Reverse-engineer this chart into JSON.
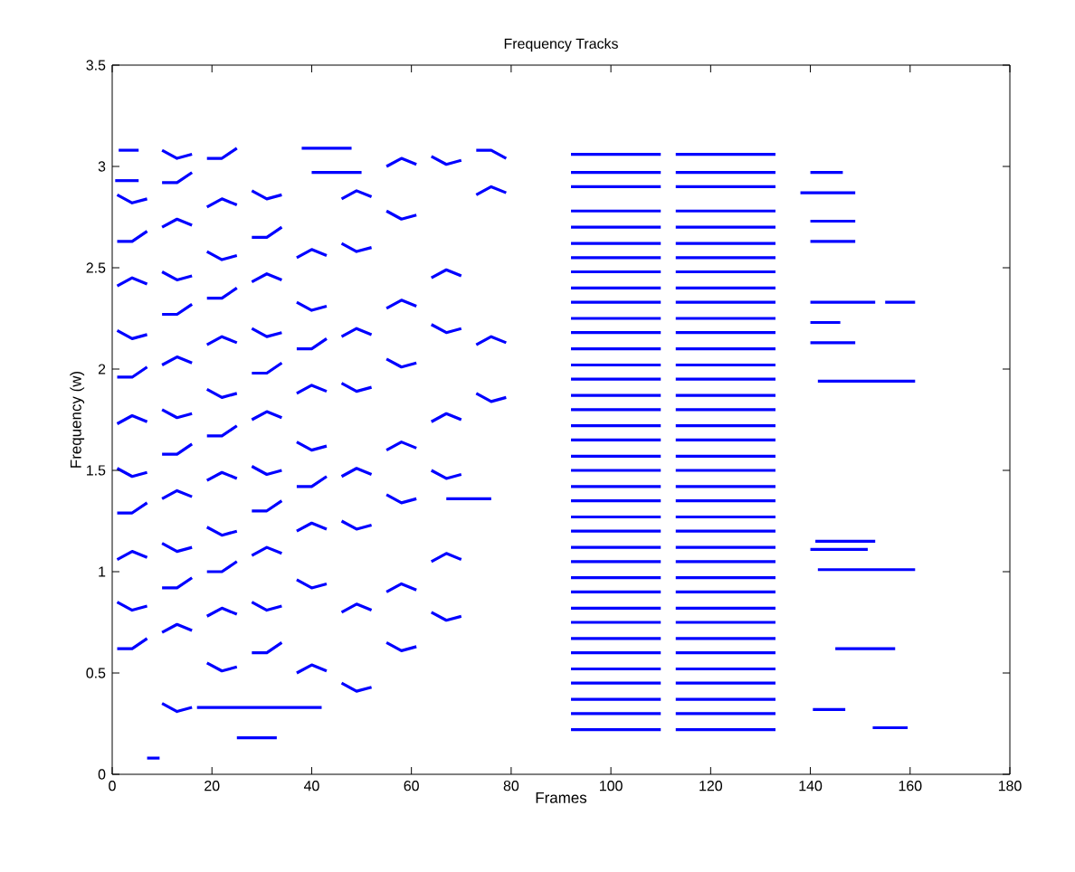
{
  "chart_data": {
    "type": "line",
    "title": "Frequency Tracks",
    "xlabel": "Frames",
    "ylabel": "Frequency (w)",
    "xlim": [
      0,
      180
    ],
    "ylim": [
      0,
      3.5
    ],
    "xticks": [
      0,
      20,
      40,
      60,
      80,
      100,
      120,
      140,
      160,
      180
    ],
    "yticks": [
      0,
      0.5,
      1,
      1.5,
      2,
      2.5,
      3,
      3.5
    ],
    "series": [
      {
        "color": "#0000ff",
        "x": [
          1.3,
          5.3
        ],
        "values": [
          3.08,
          3.08
        ]
      },
      {
        "color": "#0000ff",
        "x": [
          0.6,
          5.3
        ],
        "values": [
          2.93,
          2.93
        ]
      },
      {
        "color": "#0000ff",
        "x": [
          1,
          4,
          7
        ],
        "values": [
          2.86,
          2.82,
          2.84
        ]
      },
      {
        "color": "#0000ff",
        "x": [
          1,
          4,
          7
        ],
        "values": [
          2.63,
          2.63,
          2.68
        ]
      },
      {
        "color": "#0000ff",
        "x": [
          1,
          4,
          7
        ],
        "values": [
          2.41,
          2.45,
          2.42
        ]
      },
      {
        "color": "#0000ff",
        "x": [
          1,
          4,
          7
        ],
        "values": [
          2.19,
          2.15,
          2.17
        ]
      },
      {
        "color": "#0000ff",
        "x": [
          1,
          4,
          7
        ],
        "values": [
          1.96,
          1.96,
          2.01
        ]
      },
      {
        "color": "#0000ff",
        "x": [
          1,
          4,
          7
        ],
        "values": [
          1.73,
          1.77,
          1.74
        ]
      },
      {
        "color": "#0000ff",
        "x": [
          1,
          4,
          7
        ],
        "values": [
          1.51,
          1.47,
          1.49
        ]
      },
      {
        "color": "#0000ff",
        "x": [
          1,
          4,
          7
        ],
        "values": [
          1.29,
          1.29,
          1.34
        ]
      },
      {
        "color": "#0000ff",
        "x": [
          1,
          4,
          7
        ],
        "values": [
          1.06,
          1.1,
          1.07
        ]
      },
      {
        "color": "#0000ff",
        "x": [
          1,
          4,
          7
        ],
        "values": [
          0.85,
          0.81,
          0.83
        ]
      },
      {
        "color": "#0000ff",
        "x": [
          1,
          4,
          7
        ],
        "values": [
          0.62,
          0.62,
          0.67
        ]
      },
      {
        "color": "#0000ff",
        "x": [
          7,
          9.5
        ],
        "values": [
          0.08,
          0.08
        ]
      },
      {
        "color": "#0000ff",
        "x": [
          10,
          13,
          16
        ],
        "values": [
          3.08,
          3.04,
          3.06
        ]
      },
      {
        "color": "#0000ff",
        "x": [
          10,
          13,
          16
        ],
        "values": [
          2.92,
          2.92,
          2.97
        ]
      },
      {
        "color": "#0000ff",
        "x": [
          10,
          13,
          16
        ],
        "values": [
          2.7,
          2.74,
          2.71
        ]
      },
      {
        "color": "#0000ff",
        "x": [
          10,
          13,
          16
        ],
        "values": [
          2.48,
          2.44,
          2.46
        ]
      },
      {
        "color": "#0000ff",
        "x": [
          10,
          13,
          16
        ],
        "values": [
          2.27,
          2.27,
          2.32
        ]
      },
      {
        "color": "#0000ff",
        "x": [
          10,
          13,
          16
        ],
        "values": [
          2.02,
          2.06,
          2.03
        ]
      },
      {
        "color": "#0000ff",
        "x": [
          10,
          13,
          16
        ],
        "values": [
          1.8,
          1.76,
          1.78
        ]
      },
      {
        "color": "#0000ff",
        "x": [
          10,
          13,
          16
        ],
        "values": [
          1.58,
          1.58,
          1.63
        ]
      },
      {
        "color": "#0000ff",
        "x": [
          10,
          13,
          16
        ],
        "values": [
          1.36,
          1.4,
          1.37
        ]
      },
      {
        "color": "#0000ff",
        "x": [
          10,
          13,
          16
        ],
        "values": [
          1.14,
          1.1,
          1.12
        ]
      },
      {
        "color": "#0000ff",
        "x": [
          10,
          13,
          16
        ],
        "values": [
          0.92,
          0.92,
          0.97
        ]
      },
      {
        "color": "#0000ff",
        "x": [
          10,
          13,
          16
        ],
        "values": [
          0.7,
          0.74,
          0.71
        ]
      },
      {
        "color": "#0000ff",
        "x": [
          10,
          13,
          16
        ],
        "values": [
          0.35,
          0.31,
          0.33
        ]
      },
      {
        "color": "#0000ff",
        "x": [
          19,
          22,
          25
        ],
        "values": [
          3.04,
          3.04,
          3.09
        ]
      },
      {
        "color": "#0000ff",
        "x": [
          19,
          22,
          25
        ],
        "values": [
          2.8,
          2.84,
          2.81
        ]
      },
      {
        "color": "#0000ff",
        "x": [
          19,
          22,
          25
        ],
        "values": [
          2.58,
          2.54,
          2.56
        ]
      },
      {
        "color": "#0000ff",
        "x": [
          19,
          22,
          25
        ],
        "values": [
          2.35,
          2.35,
          2.4
        ]
      },
      {
        "color": "#0000ff",
        "x": [
          19,
          22,
          25
        ],
        "values": [
          2.12,
          2.16,
          2.13
        ]
      },
      {
        "color": "#0000ff",
        "x": [
          19,
          22,
          25
        ],
        "values": [
          1.9,
          1.86,
          1.88
        ]
      },
      {
        "color": "#0000ff",
        "x": [
          19,
          22,
          25
        ],
        "values": [
          1.67,
          1.67,
          1.72
        ]
      },
      {
        "color": "#0000ff",
        "x": [
          19,
          22,
          25
        ],
        "values": [
          1.45,
          1.49,
          1.46
        ]
      },
      {
        "color": "#0000ff",
        "x": [
          19,
          22,
          25
        ],
        "values": [
          1.22,
          1.18,
          1.2
        ]
      },
      {
        "color": "#0000ff",
        "x": [
          19,
          22,
          25
        ],
        "values": [
          1.0,
          1.0,
          1.05
        ]
      },
      {
        "color": "#0000ff",
        "x": [
          19,
          22,
          25
        ],
        "values": [
          0.78,
          0.82,
          0.79
        ]
      },
      {
        "color": "#0000ff",
        "x": [
          19,
          22,
          25
        ],
        "values": [
          0.55,
          0.51,
          0.53
        ]
      },
      {
        "color": "#0000ff",
        "x": [
          17,
          30,
          42
        ],
        "values": [
          0.33,
          0.33,
          0.33
        ]
      },
      {
        "color": "#0000ff",
        "x": [
          28,
          31,
          34
        ],
        "values": [
          2.88,
          2.84,
          2.86
        ]
      },
      {
        "color": "#0000ff",
        "x": [
          28,
          31,
          34
        ],
        "values": [
          2.65,
          2.65,
          2.7
        ]
      },
      {
        "color": "#0000ff",
        "x": [
          28,
          31,
          34
        ],
        "values": [
          2.43,
          2.47,
          2.44
        ]
      },
      {
        "color": "#0000ff",
        "x": [
          28,
          31,
          34
        ],
        "values": [
          2.2,
          2.16,
          2.18
        ]
      },
      {
        "color": "#0000ff",
        "x": [
          28,
          31,
          34
        ],
        "values": [
          1.98,
          1.98,
          2.03
        ]
      },
      {
        "color": "#0000ff",
        "x": [
          28,
          31,
          34
        ],
        "values": [
          1.75,
          1.79,
          1.76
        ]
      },
      {
        "color": "#0000ff",
        "x": [
          28,
          31,
          34
        ],
        "values": [
          1.52,
          1.48,
          1.5
        ]
      },
      {
        "color": "#0000ff",
        "x": [
          28,
          31,
          34
        ],
        "values": [
          1.3,
          1.3,
          1.35
        ]
      },
      {
        "color": "#0000ff",
        "x": [
          28,
          31,
          34
        ],
        "values": [
          1.08,
          1.12,
          1.09
        ]
      },
      {
        "color": "#0000ff",
        "x": [
          28,
          31,
          34
        ],
        "values": [
          0.85,
          0.81,
          0.83
        ]
      },
      {
        "color": "#0000ff",
        "x": [
          28,
          31,
          34
        ],
        "values": [
          0.6,
          0.6,
          0.65
        ]
      },
      {
        "color": "#0000ff",
        "x": [
          25,
          29,
          33
        ],
        "values": [
          0.18,
          0.18,
          0.18
        ]
      },
      {
        "color": "#0000ff",
        "x": [
          38,
          43,
          48
        ],
        "values": [
          3.09,
          3.09,
          3.09
        ]
      },
      {
        "color": "#0000ff",
        "x": [
          40,
          45,
          50
        ],
        "values": [
          2.97,
          2.97,
          2.97
        ]
      },
      {
        "color": "#0000ff",
        "x": [
          37,
          40,
          43
        ],
        "values": [
          2.55,
          2.59,
          2.56
        ]
      },
      {
        "color": "#0000ff",
        "x": [
          37,
          40,
          43
        ],
        "values": [
          2.33,
          2.29,
          2.31
        ]
      },
      {
        "color": "#0000ff",
        "x": [
          37,
          40,
          43
        ],
        "values": [
          2.1,
          2.1,
          2.15
        ]
      },
      {
        "color": "#0000ff",
        "x": [
          37,
          40,
          43
        ],
        "values": [
          1.88,
          1.92,
          1.89
        ]
      },
      {
        "color": "#0000ff",
        "x": [
          37,
          40,
          43
        ],
        "values": [
          1.64,
          1.6,
          1.62
        ]
      },
      {
        "color": "#0000ff",
        "x": [
          37,
          40,
          43
        ],
        "values": [
          1.42,
          1.42,
          1.47
        ]
      },
      {
        "color": "#0000ff",
        "x": [
          37,
          40,
          43
        ],
        "values": [
          1.2,
          1.24,
          1.21
        ]
      },
      {
        "color": "#0000ff",
        "x": [
          37,
          40,
          43
        ],
        "values": [
          0.96,
          0.92,
          0.94
        ]
      },
      {
        "color": "#0000ff",
        "x": [
          37,
          40,
          43
        ],
        "values": [
          0.5,
          0.54,
          0.51
        ]
      },
      {
        "color": "#0000ff",
        "x": [
          46,
          49,
          52
        ],
        "values": [
          2.84,
          2.88,
          2.85
        ]
      },
      {
        "color": "#0000ff",
        "x": [
          46,
          49,
          52
        ],
        "values": [
          2.62,
          2.58,
          2.6
        ]
      },
      {
        "color": "#0000ff",
        "x": [
          46,
          49,
          52
        ],
        "values": [
          2.16,
          2.2,
          2.17
        ]
      },
      {
        "color": "#0000ff",
        "x": [
          46,
          49,
          52
        ],
        "values": [
          1.93,
          1.89,
          1.91
        ]
      },
      {
        "color": "#0000ff",
        "x": [
          46,
          49,
          52
        ],
        "values": [
          1.47,
          1.51,
          1.48
        ]
      },
      {
        "color": "#0000ff",
        "x": [
          46,
          49,
          52
        ],
        "values": [
          1.25,
          1.21,
          1.23
        ]
      },
      {
        "color": "#0000ff",
        "x": [
          46,
          49,
          52
        ],
        "values": [
          0.8,
          0.84,
          0.81
        ]
      },
      {
        "color": "#0000ff",
        "x": [
          46,
          49,
          52
        ],
        "values": [
          0.45,
          0.41,
          0.43
        ]
      },
      {
        "color": "#0000ff",
        "x": [
          55,
          58,
          61
        ],
        "values": [
          3.0,
          3.04,
          3.01
        ]
      },
      {
        "color": "#0000ff",
        "x": [
          55,
          58,
          61
        ],
        "values": [
          2.78,
          2.74,
          2.76
        ]
      },
      {
        "color": "#0000ff",
        "x": [
          55,
          58,
          61
        ],
        "values": [
          2.3,
          2.34,
          2.31
        ]
      },
      {
        "color": "#0000ff",
        "x": [
          55,
          58,
          61
        ],
        "values": [
          2.05,
          2.01,
          2.03
        ]
      },
      {
        "color": "#0000ff",
        "x": [
          55,
          58,
          61
        ],
        "values": [
          1.6,
          1.64,
          1.61
        ]
      },
      {
        "color": "#0000ff",
        "x": [
          55,
          58,
          61
        ],
        "values": [
          1.38,
          1.34,
          1.36
        ]
      },
      {
        "color": "#0000ff",
        "x": [
          55,
          58,
          61
        ],
        "values": [
          0.9,
          0.94,
          0.91
        ]
      },
      {
        "color": "#0000ff",
        "x": [
          55,
          58,
          61
        ],
        "values": [
          0.65,
          0.61,
          0.63
        ]
      },
      {
        "color": "#0000ff",
        "x": [
          64,
          67,
          70
        ],
        "values": [
          3.05,
          3.01,
          3.03
        ]
      },
      {
        "color": "#0000ff",
        "x": [
          64,
          67,
          70
        ],
        "values": [
          2.45,
          2.49,
          2.46
        ]
      },
      {
        "color": "#0000ff",
        "x": [
          64,
          67,
          70
        ],
        "values": [
          2.22,
          2.18,
          2.2
        ]
      },
      {
        "color": "#0000ff",
        "x": [
          64,
          67,
          70
        ],
        "values": [
          1.74,
          1.78,
          1.75
        ]
      },
      {
        "color": "#0000ff",
        "x": [
          64,
          67,
          70
        ],
        "values": [
          1.5,
          1.46,
          1.48
        ]
      },
      {
        "color": "#0000ff",
        "x": [
          64,
          67,
          70
        ],
        "values": [
          1.05,
          1.09,
          1.06
        ]
      },
      {
        "color": "#0000ff",
        "x": [
          64,
          67,
          70
        ],
        "values": [
          0.8,
          0.76,
          0.78
        ]
      },
      {
        "color": "#0000ff",
        "x": [
          67,
          72,
          76
        ],
        "values": [
          1.36,
          1.36,
          1.36
        ]
      },
      {
        "color": "#0000ff",
        "x": [
          73,
          76,
          79
        ],
        "values": [
          3.08,
          3.08,
          3.04
        ]
      },
      {
        "color": "#0000ff",
        "x": [
          73,
          76,
          79
        ],
        "values": [
          2.86,
          2.9,
          2.87
        ]
      },
      {
        "color": "#0000ff",
        "x": [
          73,
          76,
          79
        ],
        "values": [
          2.12,
          2.16,
          2.13
        ]
      },
      {
        "color": "#0000ff",
        "x": [
          73,
          76,
          79
        ],
        "values": [
          1.88,
          1.84,
          1.86
        ]
      },
      {
        "color": "#0000ff",
        "x": [
          92,
          110,
          111,
          113,
          133
        ],
        "values": [
          3.06,
          3.06,
          null,
          3.06,
          3.06
        ]
      },
      {
        "color": "#0000ff",
        "x": [
          92,
          110,
          111,
          113,
          133
        ],
        "values": [
          2.97,
          2.97,
          null,
          2.97,
          2.97
        ]
      },
      {
        "color": "#0000ff",
        "x": [
          92,
          110,
          111,
          113,
          133
        ],
        "values": [
          2.9,
          2.9,
          null,
          2.9,
          2.9
        ]
      },
      {
        "color": "#0000ff",
        "x": [
          92,
          110,
          111,
          113,
          133
        ],
        "values": [
          2.78,
          2.78,
          null,
          2.78,
          2.78
        ]
      },
      {
        "color": "#0000ff",
        "x": [
          92,
          110,
          111,
          113,
          133
        ],
        "values": [
          2.7,
          2.7,
          null,
          2.7,
          2.7
        ]
      },
      {
        "color": "#0000ff",
        "x": [
          92,
          110,
          111,
          113,
          133
        ],
        "values": [
          2.62,
          2.62,
          null,
          2.62,
          2.62
        ]
      },
      {
        "color": "#0000ff",
        "x": [
          92,
          110,
          111,
          113,
          133
        ],
        "values": [
          2.55,
          2.55,
          null,
          2.55,
          2.55
        ]
      },
      {
        "color": "#0000ff",
        "x": [
          92,
          110,
          111,
          113,
          133
        ],
        "values": [
          2.48,
          2.48,
          null,
          2.48,
          2.48
        ]
      },
      {
        "color": "#0000ff",
        "x": [
          92,
          110,
          111,
          113,
          133
        ],
        "values": [
          2.4,
          2.4,
          null,
          2.4,
          2.4
        ]
      },
      {
        "color": "#0000ff",
        "x": [
          92,
          110,
          111,
          113,
          133
        ],
        "values": [
          2.33,
          2.33,
          null,
          2.33,
          2.33
        ]
      },
      {
        "color": "#0000ff",
        "x": [
          92,
          110,
          111,
          113,
          133
        ],
        "values": [
          2.25,
          2.25,
          null,
          2.25,
          2.25
        ]
      },
      {
        "color": "#0000ff",
        "x": [
          92,
          110,
          111,
          113,
          133
        ],
        "values": [
          2.18,
          2.18,
          null,
          2.18,
          2.18
        ]
      },
      {
        "color": "#0000ff",
        "x": [
          92,
          110,
          111,
          113,
          133
        ],
        "values": [
          2.1,
          2.1,
          null,
          2.1,
          2.1
        ]
      },
      {
        "color": "#0000ff",
        "x": [
          92,
          110,
          111,
          113,
          133
        ],
        "values": [
          2.02,
          2.02,
          null,
          2.02,
          2.02
        ]
      },
      {
        "color": "#0000ff",
        "x": [
          92,
          110,
          111,
          113,
          133
        ],
        "values": [
          1.95,
          1.95,
          null,
          1.95,
          1.95
        ]
      },
      {
        "color": "#0000ff",
        "x": [
          92,
          110,
          111,
          113,
          133
        ],
        "values": [
          1.87,
          1.87,
          null,
          1.87,
          1.87
        ]
      },
      {
        "color": "#0000ff",
        "x": [
          92,
          110,
          111,
          113,
          133
        ],
        "values": [
          1.8,
          1.8,
          null,
          1.8,
          1.8
        ]
      },
      {
        "color": "#0000ff",
        "x": [
          92,
          110,
          111,
          113,
          133
        ],
        "values": [
          1.72,
          1.72,
          null,
          1.72,
          1.72
        ]
      },
      {
        "color": "#0000ff",
        "x": [
          92,
          110,
          111,
          113,
          133
        ],
        "values": [
          1.65,
          1.65,
          null,
          1.65,
          1.65
        ]
      },
      {
        "color": "#0000ff",
        "x": [
          92,
          110,
          111,
          113,
          133
        ],
        "values": [
          1.57,
          1.57,
          null,
          1.57,
          1.57
        ]
      },
      {
        "color": "#0000ff",
        "x": [
          92,
          110,
          111,
          113,
          133
        ],
        "values": [
          1.5,
          1.5,
          null,
          1.5,
          1.5
        ]
      },
      {
        "color": "#0000ff",
        "x": [
          92,
          110,
          111,
          113,
          133
        ],
        "values": [
          1.42,
          1.42,
          null,
          1.42,
          1.42
        ]
      },
      {
        "color": "#0000ff",
        "x": [
          92,
          110,
          111,
          113,
          133
        ],
        "values": [
          1.35,
          1.35,
          null,
          1.35,
          1.35
        ]
      },
      {
        "color": "#0000ff",
        "x": [
          92,
          110,
          111,
          113,
          133
        ],
        "values": [
          1.27,
          1.27,
          null,
          1.27,
          1.27
        ]
      },
      {
        "color": "#0000ff",
        "x": [
          92,
          110,
          111,
          113,
          133
        ],
        "values": [
          1.2,
          1.2,
          null,
          1.2,
          1.2
        ]
      },
      {
        "color": "#0000ff",
        "x": [
          92,
          110,
          111,
          113,
          133
        ],
        "values": [
          1.12,
          1.12,
          null,
          1.12,
          1.12
        ]
      },
      {
        "color": "#0000ff",
        "x": [
          92,
          110,
          111,
          113,
          133
        ],
        "values": [
          1.05,
          1.05,
          null,
          1.05,
          1.05
        ]
      },
      {
        "color": "#0000ff",
        "x": [
          92,
          110,
          111,
          113,
          133
        ],
        "values": [
          0.97,
          0.97,
          null,
          0.97,
          0.97
        ]
      },
      {
        "color": "#0000ff",
        "x": [
          92,
          110,
          111,
          113,
          133
        ],
        "values": [
          0.9,
          0.9,
          null,
          0.9,
          0.9
        ]
      },
      {
        "color": "#0000ff",
        "x": [
          92,
          110,
          111,
          113,
          133
        ],
        "values": [
          0.82,
          0.82,
          null,
          0.82,
          0.82
        ]
      },
      {
        "color": "#0000ff",
        "x": [
          92,
          110,
          111,
          113,
          133
        ],
        "values": [
          0.75,
          0.75,
          null,
          0.75,
          0.75
        ]
      },
      {
        "color": "#0000ff",
        "x": [
          92,
          110,
          111,
          113,
          133
        ],
        "values": [
          0.67,
          0.67,
          null,
          0.67,
          0.67
        ]
      },
      {
        "color": "#0000ff",
        "x": [
          92,
          110,
          111,
          113,
          133
        ],
        "values": [
          0.6,
          0.6,
          null,
          0.6,
          0.6
        ]
      },
      {
        "color": "#0000ff",
        "x": [
          92,
          110,
          111,
          113,
          133
        ],
        "values": [
          0.52,
          0.52,
          null,
          0.52,
          0.52
        ]
      },
      {
        "color": "#0000ff",
        "x": [
          92,
          110,
          111,
          113,
          133
        ],
        "values": [
          0.45,
          0.45,
          null,
          0.45,
          0.45
        ]
      },
      {
        "color": "#0000ff",
        "x": [
          92,
          110,
          111,
          113,
          133
        ],
        "values": [
          0.37,
          0.37,
          null,
          0.37,
          0.37
        ]
      },
      {
        "color": "#0000ff",
        "x": [
          92,
          110,
          111,
          113,
          133
        ],
        "values": [
          0.3,
          0.3,
          null,
          0.3,
          0.3
        ]
      },
      {
        "color": "#0000ff",
        "x": [
          92,
          110,
          111,
          113,
          133
        ],
        "values": [
          0.22,
          0.22,
          null,
          0.22,
          0.22
        ]
      },
      {
        "color": "#0000ff",
        "x": [
          140,
          146.5
        ],
        "values": [
          2.97,
          2.97
        ]
      },
      {
        "color": "#0000ff",
        "x": [
          138,
          149
        ],
        "values": [
          2.87,
          2.87
        ]
      },
      {
        "color": "#0000ff",
        "x": [
          140,
          149
        ],
        "values": [
          2.73,
          2.73
        ]
      },
      {
        "color": "#0000ff",
        "x": [
          140,
          149
        ],
        "values": [
          2.63,
          2.63
        ]
      },
      {
        "color": "#0000ff",
        "x": [
          140,
          153
        ],
        "values": [
          2.33,
          2.33
        ]
      },
      {
        "color": "#0000ff",
        "x": [
          155,
          161
        ],
        "values": [
          2.33,
          2.33
        ]
      },
      {
        "color": "#0000ff",
        "x": [
          140,
          146
        ],
        "values": [
          2.23,
          2.23
        ]
      },
      {
        "color": "#0000ff",
        "x": [
          140,
          149
        ],
        "values": [
          2.13,
          2.13
        ]
      },
      {
        "color": "#0000ff",
        "x": [
          141.5,
          161
        ],
        "values": [
          1.94,
          1.94
        ]
      },
      {
        "color": "#0000ff",
        "x": [
          141,
          153
        ],
        "values": [
          1.15,
          1.15
        ]
      },
      {
        "color": "#0000ff",
        "x": [
          140,
          151.5
        ],
        "values": [
          1.11,
          1.11
        ]
      },
      {
        "color": "#0000ff",
        "x": [
          141.5,
          161
        ],
        "values": [
          1.01,
          1.01
        ]
      },
      {
        "color": "#0000ff",
        "x": [
          145,
          157
        ],
        "values": [
          0.62,
          0.62
        ]
      },
      {
        "color": "#0000ff",
        "x": [
          140.5,
          147
        ],
        "values": [
          0.32,
          0.32
        ]
      },
      {
        "color": "#0000ff",
        "x": [
          152.5,
          159.5
        ],
        "values": [
          0.23,
          0.23
        ]
      }
    ]
  }
}
